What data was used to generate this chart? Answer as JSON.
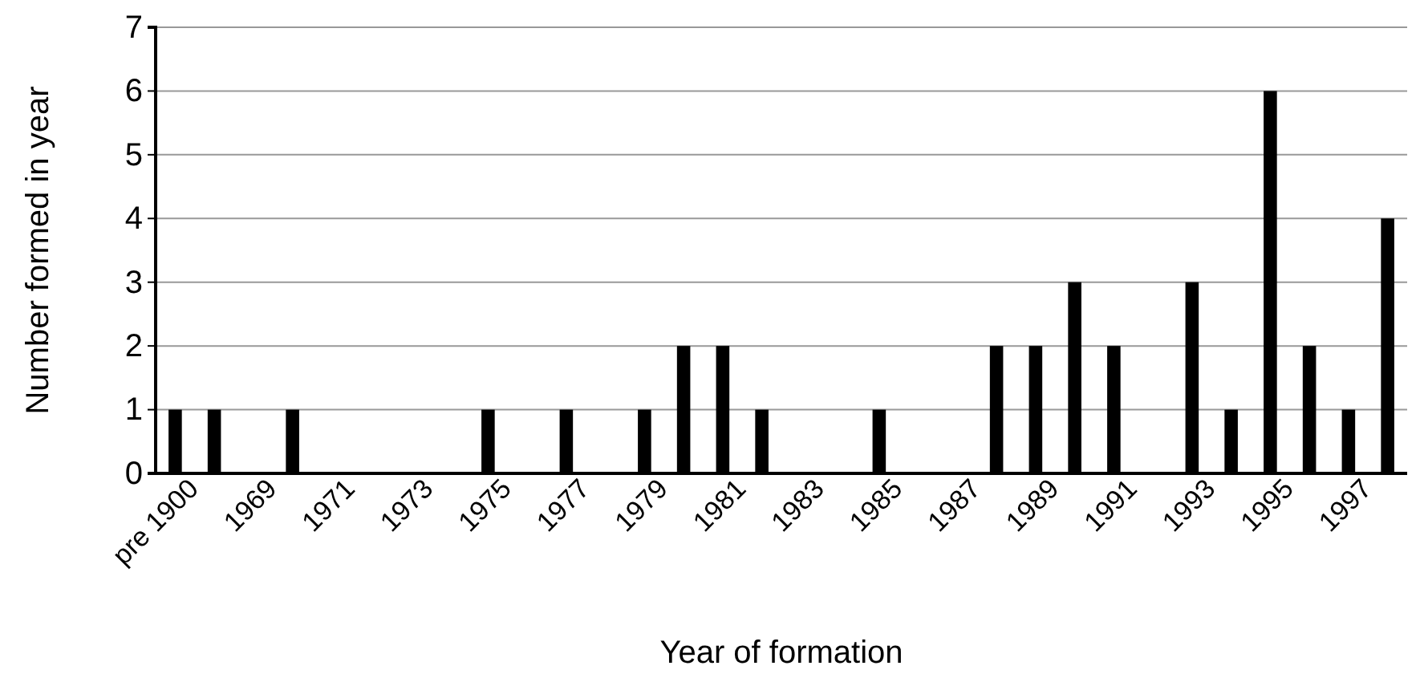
{
  "chart_data": {
    "type": "bar",
    "xlabel": "Year of formation",
    "ylabel": "Number formed in year",
    "categories": [
      "pre 1900",
      null,
      "1969",
      null,
      "1971",
      null,
      "1973",
      null,
      "1975",
      null,
      "1977",
      null,
      "1979",
      null,
      "1981",
      null,
      "1983",
      null,
      "1985",
      null,
      "1987",
      null,
      "1989",
      null,
      "1991",
      null,
      "1993",
      null,
      "1995",
      null,
      "1997",
      null
    ],
    "values": [
      1,
      1,
      0,
      1,
      0,
      0,
      0,
      0,
      1,
      0,
      1,
      0,
      1,
      2,
      2,
      1,
      0,
      0,
      1,
      0,
      0,
      2,
      2,
      3,
      2,
      0,
      3,
      1,
      6,
      2,
      1,
      4
    ],
    "color": "#000000",
    "ylim": [
      0,
      7
    ],
    "yticks": [
      0,
      1,
      2,
      3,
      4,
      5,
      6,
      7
    ],
    "grid": "y"
  }
}
